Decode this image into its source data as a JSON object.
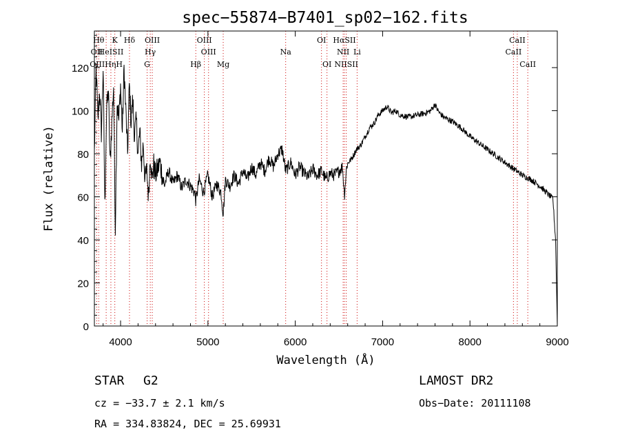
{
  "chart_data": {
    "type": "line",
    "title": "spec−55874−B7401_sp02−162.fits",
    "xlabel": "Wavelength (Å)",
    "ylabel": "Flux (relative)",
    "xlim": [
      3700,
      9000
    ],
    "ylim": [
      0,
      137
    ],
    "x_ticks": [
      4000,
      5000,
      6000,
      7000,
      8000,
      9000
    ],
    "y_ticks": [
      0,
      20,
      40,
      60,
      80,
      100,
      120
    ],
    "grid": false,
    "series": [
      {
        "x": [
          3700,
          3720,
          3740,
          3760,
          3780,
          3800,
          3820,
          3840,
          3860,
          3880,
          3900,
          3920,
          3940,
          3960,
          3980,
          4000,
          4020,
          4040,
          4060,
          4080,
          4100,
          4120,
          4140,
          4160,
          4180,
          4200,
          4220,
          4240,
          4260,
          4280,
          4300,
          4320,
          4340,
          4360,
          4380,
          4400,
          4450,
          4500,
          4550,
          4600,
          4650,
          4700,
          4750,
          4800,
          4850,
          4861,
          4900,
          4950,
          5000,
          5050,
          5100,
          5150,
          5175,
          5200,
          5250,
          5300,
          5350,
          5400,
          5450,
          5500,
          5550,
          5600,
          5650,
          5700,
          5750,
          5800,
          5850,
          5890,
          5950,
          6000,
          6050,
          6100,
          6150,
          6200,
          6250,
          6300,
          6350,
          6400,
          6450,
          6500,
          6540,
          6563,
          6590,
          6650,
          6700,
          6750,
          6800,
          6850,
          6900,
          6950,
          7000,
          7050,
          7100,
          7150,
          7200,
          7300,
          7400,
          7500,
          7550,
          7600,
          7620,
          7650,
          7700,
          7800,
          7900,
          8000,
          8100,
          8200,
          8300,
          8400,
          8500,
          8600,
          8700,
          8800,
          8850,
          8900,
          8950,
          8980,
          9000
        ],
        "y": [
          80,
          120,
          95,
          110,
          90,
          120,
          55,
          100,
          110,
          75,
          95,
          112,
          45,
          105,
          95,
          112,
          90,
          120,
          100,
          80,
          112,
          95,
          105,
          88,
          95,
          80,
          90,
          75,
          85,
          68,
          72,
          60,
          80,
          68,
          75,
          70,
          76,
          65,
          72,
          66,
          70,
          64,
          68,
          65,
          62,
          58,
          68,
          62,
          70,
          60,
          66,
          62,
          52,
          68,
          65,
          70,
          66,
          72,
          68,
          74,
          70,
          76,
          72,
          78,
          74,
          80,
          82,
          72,
          76,
          70,
          74,
          71,
          69,
          73,
          70,
          72,
          68,
          71,
          70,
          72,
          74,
          61,
          75,
          78,
          82,
          84,
          88,
          92,
          94,
          98,
          100,
          102,
          99,
          100,
          98,
          97,
          98,
          99,
          100,
          103,
          101,
          99,
          97,
          95,
          92,
          88,
          85,
          82,
          79,
          76,
          73,
          70,
          68,
          65,
          63,
          61,
          59,
          40,
          0
        ]
      }
    ],
    "emission_lines": [
      {
        "name": "Hθ",
        "wl": 3750,
        "row": 1
      },
      {
        "name": "K",
        "wl": 3934,
        "row": 1
      },
      {
        "name": "Hδ",
        "wl": 4102,
        "row": 1
      },
      {
        "name": "OIII",
        "wl": 4363,
        "row": 1
      },
      {
        "name": "OIII",
        "wl": 4959,
        "row": 1
      },
      {
        "name": "OI",
        "wl": 6300,
        "row": 1
      },
      {
        "name": "HαSII",
        "wl": 6563,
        "row": 1
      },
      {
        "name": "CaII",
        "wl": 8542,
        "row": 1
      },
      {
        "name": "OII",
        "wl": 3727,
        "row": 2
      },
      {
        "name": "HeISII",
        "wl": 3889,
        "row": 2
      },
      {
        "name": "Hγ",
        "wl": 4340,
        "row": 2
      },
      {
        "name": "OIII",
        "wl": 5007,
        "row": 2
      },
      {
        "name": "Na",
        "wl": 5890,
        "row": 2
      },
      {
        "name": "NII",
        "wl": 6548,
        "row": 2
      },
      {
        "name": "Li",
        "wl": 6708,
        "row": 2
      },
      {
        "name": "CaII",
        "wl": 8498,
        "row": 2
      },
      {
        "name": "OIIIHηH",
        "wl": 3835,
        "row": 3
      },
      {
        "name": "G",
        "wl": 4304,
        "row": 3
      },
      {
        "name": "Hβ",
        "wl": 4861,
        "row": 3
      },
      {
        "name": "Mg",
        "wl": 5175,
        "row": 3
      },
      {
        "name": "OI",
        "wl": 6363,
        "row": 3
      },
      {
        "name": "NIISII",
        "wl": 6584,
        "row": 3
      },
      {
        "name": "CaII",
        "wl": 8662,
        "row": 3
      }
    ],
    "line_color": "#000000",
    "marker_color": "#cc0000"
  },
  "info": {
    "class": "STAR",
    "subclass": "G2",
    "survey": "LAMOST DR2",
    "cz": "cz = −33.7 ± 2.1 km/s",
    "obs_date": "Obs−Date: 20111108",
    "coords": "RA = 334.83824, DEC =  25.69931"
  }
}
